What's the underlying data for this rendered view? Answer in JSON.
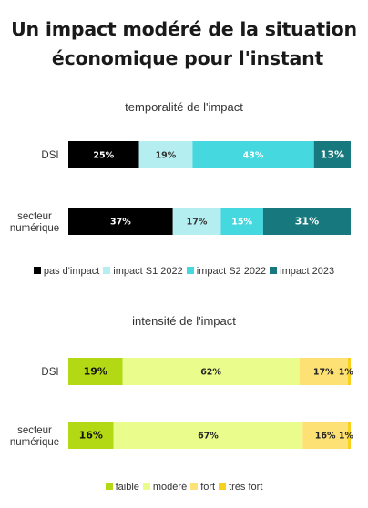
{
  "title": {
    "line1": "Un impact modéré de la situation",
    "line2": "économique pour l'instant"
  },
  "chart_data": [
    {
      "type": "bar",
      "orientation": "horizontal-stacked-100",
      "title": "temporalité de l'impact",
      "categories": [
        "DSI",
        "secteur numérique"
      ],
      "series": [
        {
          "name": "pas d'impact",
          "color": "#000000",
          "label_color": "#ffffff",
          "values": [
            25,
            37
          ]
        },
        {
          "name": "impact S1 2022",
          "color": "#b4eef0",
          "label_color": "#333333",
          "values": [
            19,
            17
          ]
        },
        {
          "name": "impact S2 2022",
          "color": "#45d8df",
          "label_color": "#ffffff",
          "values": [
            43,
            15
          ]
        },
        {
          "name": "impact 2023",
          "color": "#17797e",
          "label_color": "#ffffff",
          "values": [
            13,
            31
          ]
        }
      ],
      "legend": "bottom"
    },
    {
      "type": "bar",
      "orientation": "horizontal-stacked-100",
      "title": "intensité de l'impact",
      "categories": [
        "DSI",
        "secteur numérique"
      ],
      "series": [
        {
          "name": "faible",
          "color": "#b3d914",
          "label_color": "#111111",
          "values": [
            19,
            16
          ]
        },
        {
          "name": "modéré",
          "color": "#eafc8c",
          "label_color": "#222222",
          "values": [
            62,
            67
          ]
        },
        {
          "name": "fort",
          "color": "#fde174",
          "label_color": "#222222",
          "values": [
            17,
            16
          ]
        },
        {
          "name": "très fort",
          "color": "#f8d11c",
          "label_color": "#222222",
          "values": [
            1,
            1
          ]
        }
      ],
      "legend": "bottom"
    }
  ]
}
